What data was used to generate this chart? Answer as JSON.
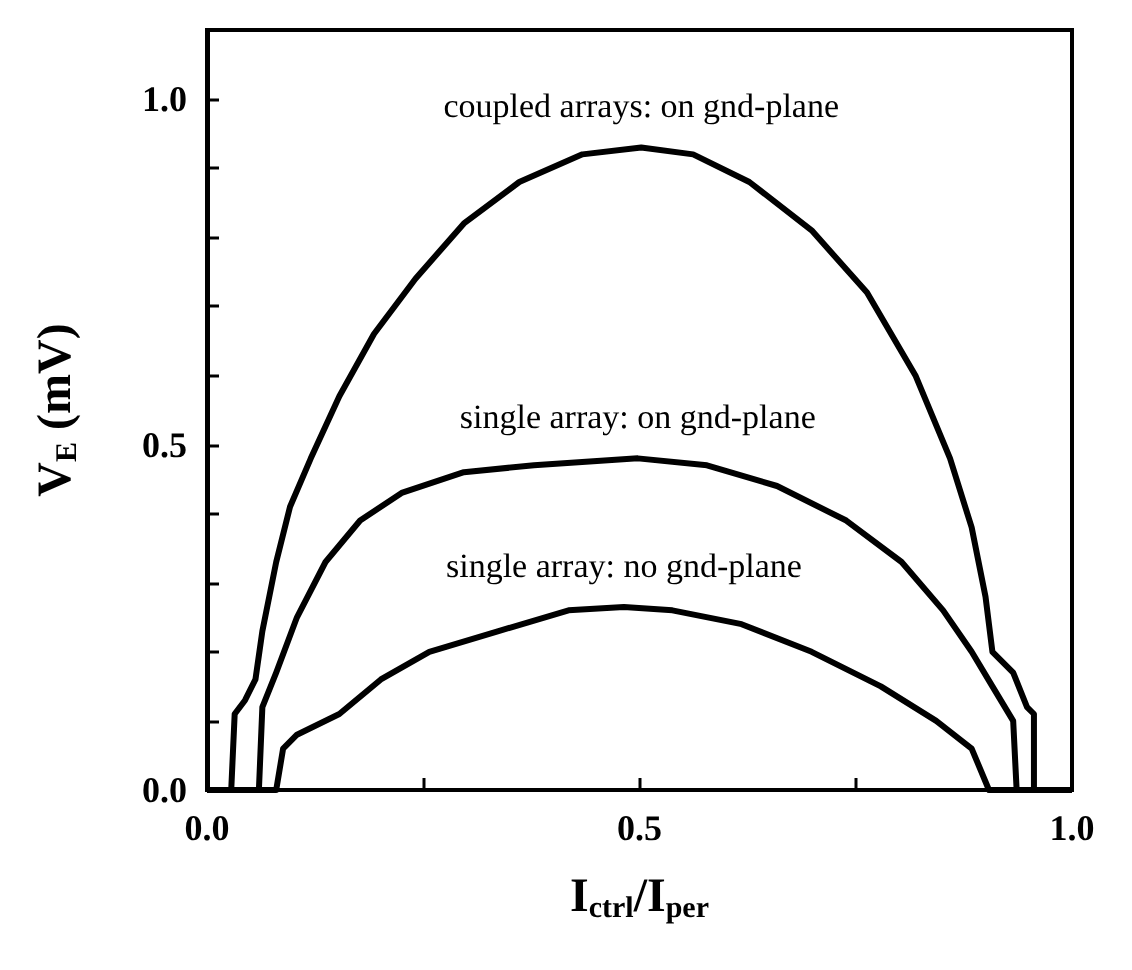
{
  "chart_data": {
    "type": "line",
    "xlabel": "I$_{ctrl}$/I$_{per}$",
    "ylabel": "V$_{E}$ (mV)",
    "xlim": [
      0,
      1.0
    ],
    "ylim": [
      0,
      1.1
    ],
    "xticks": [
      {
        "value": 0,
        "label": "0.0"
      },
      {
        "value": 0.25,
        "label": null
      },
      {
        "value": 0.5,
        "label": "0.5"
      },
      {
        "value": 0.75,
        "label": null
      },
      {
        "value": 1.0,
        "label": "1.0"
      }
    ],
    "yticks": [
      {
        "value": 0,
        "label": "0.0"
      },
      {
        "value": 0.1,
        "label": null
      },
      {
        "value": 0.2,
        "label": null
      },
      {
        "value": 0.3,
        "label": null
      },
      {
        "value": 0.4,
        "label": null
      },
      {
        "value": 0.5,
        "label": "0.5"
      },
      {
        "value": 0.6,
        "label": null
      },
      {
        "value": 0.7,
        "label": null
      },
      {
        "value": 0.8,
        "label": null
      },
      {
        "value": 0.9,
        "label": null
      },
      {
        "value": 1.0,
        "label": "1.0"
      }
    ],
    "grid": false,
    "legend": false,
    "marker": "none",
    "line_style": "solid",
    "series": [
      {
        "name": "coupled arrays: on gnd-plane",
        "color": "#000000",
        "x": [
          0,
          0.028,
          0.032,
          0.044,
          0.056,
          0.064,
          0.08,
          0.096,
          0.12,
          0.153,
          0.193,
          0.241,
          0.297,
          0.361,
          0.434,
          0.502,
          0.562,
          0.627,
          0.699,
          0.763,
          0.819,
          0.859,
          0.884,
          0.9,
          0.908,
          0.932,
          0.948,
          0.956,
          0.956,
          1.0
        ],
        "values": [
          0,
          0,
          0.11,
          0.13,
          0.16,
          0.23,
          0.33,
          0.41,
          0.48,
          0.57,
          0.66,
          0.74,
          0.82,
          0.88,
          0.92,
          0.93,
          0.92,
          0.88,
          0.81,
          0.72,
          0.6,
          0.48,
          0.38,
          0.28,
          0.2,
          0.17,
          0.12,
          0.11,
          0,
          0
        ]
      },
      {
        "name": "single array: on gnd-plane",
        "color": "#000000",
        "x": [
          0,
          0.06,
          0.064,
          0.08,
          0.104,
          0.137,
          0.177,
          0.225,
          0.297,
          0.378,
          0.498,
          0.578,
          0.659,
          0.739,
          0.803,
          0.851,
          0.884,
          0.908,
          0.932,
          0.936,
          1.0
        ],
        "values": [
          0,
          0,
          0.12,
          0.17,
          0.25,
          0.33,
          0.39,
          0.43,
          0.46,
          0.47,
          0.48,
          0.47,
          0.44,
          0.39,
          0.33,
          0.26,
          0.2,
          0.15,
          0.1,
          0,
          0
        ]
      },
      {
        "name": "single array: no gnd-plane",
        "color": "#000000",
        "x": [
          0,
          0.08,
          0.088,
          0.104,
          0.153,
          0.201,
          0.257,
          0.337,
          0.418,
          0.482,
          0.538,
          0.618,
          0.699,
          0.779,
          0.843,
          0.884,
          0.904,
          1.0
        ],
        "values": [
          0,
          0,
          0.06,
          0.08,
          0.11,
          0.16,
          0.2,
          0.23,
          0.26,
          0.265,
          0.26,
          0.24,
          0.2,
          0.15,
          0.1,
          0.06,
          0,
          0
        ]
      }
    ]
  }
}
